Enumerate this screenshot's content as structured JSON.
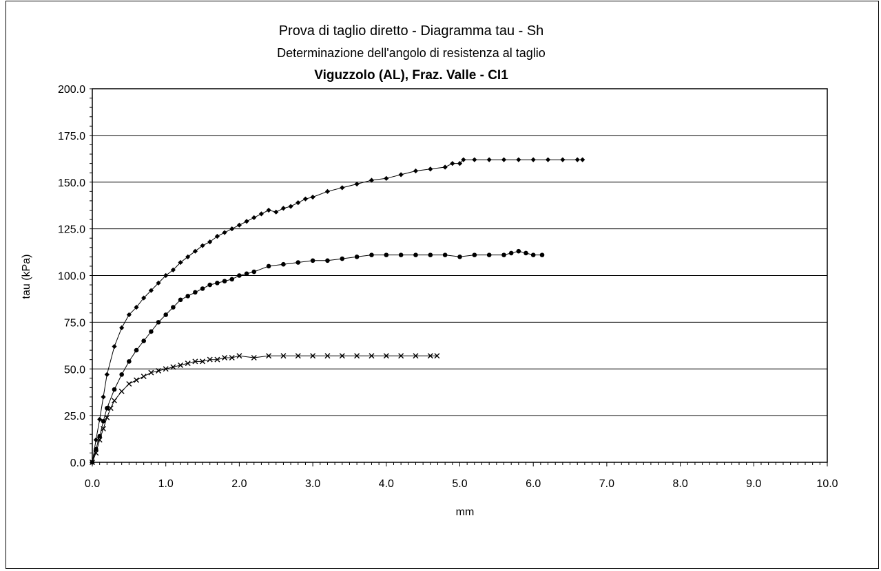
{
  "chart_data": {
    "type": "scatter",
    "title": "Prova di taglio diretto - Diagramma tau - Sh",
    "subtitle": "Determinazione dell'angolo di resistenza al taglio",
    "subtitle2": "Viguzzolo (AL), Fraz. Valle - CI1",
    "xlabel": "mm",
    "ylabel": "tau (kPa)",
    "xlim": [
      0,
      10
    ],
    "ylim": [
      0,
      200
    ],
    "xticks": [
      "0.0",
      "1.0",
      "2.0",
      "3.0",
      "4.0",
      "5.0",
      "6.0",
      "7.0",
      "8.0",
      "9.0",
      "10.0"
    ],
    "yticks": [
      "0.0",
      "25.0",
      "50.0",
      "75.0",
      "100.0",
      "125.0",
      "150.0",
      "175.0",
      "200.0"
    ],
    "grid": "horizontal",
    "series": [
      {
        "marker": "diamond",
        "color": "#000000",
        "x": [
          0,
          0.05,
          0.1,
          0.15,
          0.2,
          0.3,
          0.4,
          0.5,
          0.6,
          0.7,
          0.8,
          0.9,
          1.0,
          1.1,
          1.2,
          1.3,
          1.4,
          1.5,
          1.6,
          1.7,
          1.8,
          1.9,
          2.0,
          2.1,
          2.2,
          2.3,
          2.4,
          2.5,
          2.6,
          2.7,
          2.8,
          2.9,
          3.0,
          3.2,
          3.4,
          3.6,
          3.8,
          4.0,
          4.2,
          4.4,
          4.6,
          4.8,
          4.9,
          5.0,
          5.05,
          5.2,
          5.4,
          5.6,
          5.8,
          6.0,
          6.2,
          6.4,
          6.6,
          6.67
        ],
        "y": [
          0,
          12,
          23,
          35,
          47,
          62,
          72,
          79,
          83,
          88,
          92,
          96,
          100,
          103,
          107,
          110,
          113,
          116,
          118,
          121,
          123,
          125,
          127,
          129,
          131,
          133,
          135,
          134,
          136,
          137,
          139,
          141,
          142,
          145,
          147,
          149,
          151,
          152,
          154,
          156,
          157,
          158,
          160,
          160,
          162,
          162,
          162,
          162,
          162,
          162,
          162,
          162,
          162,
          162
        ]
      },
      {
        "marker": "circle",
        "color": "#000000",
        "x": [
          0,
          0.05,
          0.1,
          0.15,
          0.2,
          0.3,
          0.4,
          0.5,
          0.6,
          0.7,
          0.8,
          0.9,
          1.0,
          1.1,
          1.2,
          1.3,
          1.4,
          1.5,
          1.6,
          1.7,
          1.8,
          1.9,
          2.0,
          2.1,
          2.2,
          2.4,
          2.6,
          2.8,
          3.0,
          3.2,
          3.4,
          3.6,
          3.8,
          4.0,
          4.2,
          4.4,
          4.6,
          4.8,
          5.0,
          5.2,
          5.4,
          5.6,
          5.7,
          5.8,
          5.9,
          6.0,
          6.12
        ],
        "y": [
          0,
          7,
          14,
          22,
          29,
          39,
          47,
          54,
          60,
          65,
          70,
          75,
          79,
          83,
          87,
          89,
          91,
          93,
          95,
          96,
          97,
          98,
          100,
          101,
          102,
          105,
          106,
          107,
          108,
          108,
          109,
          110,
          111,
          111,
          111,
          111,
          111,
          111,
          110,
          111,
          111,
          111,
          112,
          113,
          112,
          111,
          111
        ]
      },
      {
        "marker": "x",
        "color": "#000000",
        "x": [
          0,
          0.05,
          0.1,
          0.15,
          0.2,
          0.25,
          0.3,
          0.4,
          0.5,
          0.6,
          0.7,
          0.8,
          0.9,
          1.0,
          1.1,
          1.2,
          1.3,
          1.4,
          1.5,
          1.6,
          1.7,
          1.8,
          1.9,
          2.0,
          2.2,
          2.4,
          2.6,
          2.8,
          3.0,
          3.2,
          3.4,
          3.6,
          3.8,
          4.0,
          4.2,
          4.4,
          4.6,
          4.69
        ],
        "y": [
          0,
          5,
          12,
          18,
          24,
          29,
          33,
          38,
          42,
          44,
          46,
          48,
          49,
          50,
          51,
          52,
          53,
          54,
          54,
          55,
          55,
          56,
          56,
          57,
          56,
          57,
          57,
          57,
          57,
          57,
          57,
          57,
          57,
          57,
          57,
          57,
          57,
          57
        ]
      }
    ]
  }
}
